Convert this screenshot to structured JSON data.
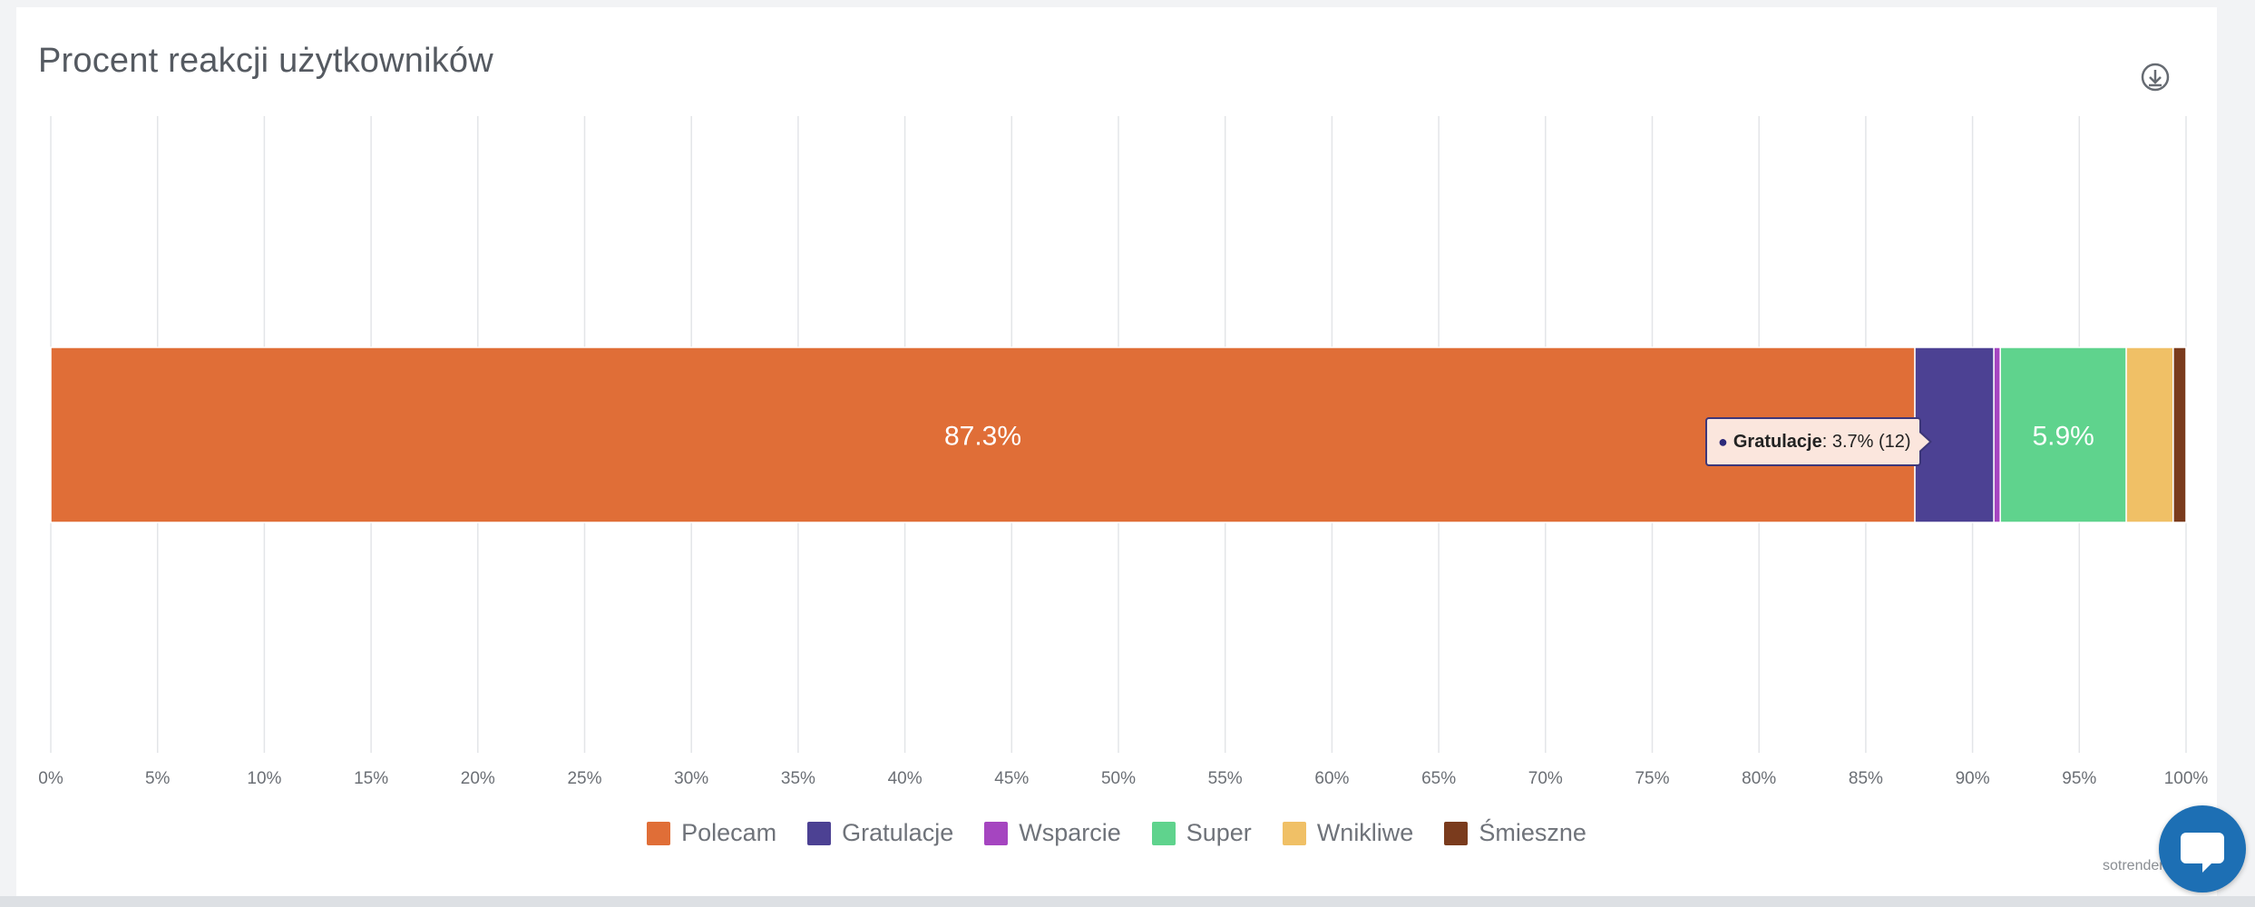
{
  "title": "Procent reakcji użytkowników",
  "credit": "sotrender.",
  "colors": {
    "Polecam": "#e06e37",
    "Gratulacje": "#4c4193",
    "Wsparcie": "#a545c0",
    "Super": "#5fd38d",
    "Wnikliwe": "#f0c066",
    "Śmieszne": "#7a3b1d"
  },
  "icons": {
    "download": "download-icon",
    "chat": "chat-icon"
  },
  "tooltip": {
    "series": "Gratulacje",
    "value_text": ": 3.7% (12)"
  },
  "legend": [
    "Polecam",
    "Gratulacje",
    "Wsparcie",
    "Super",
    "Wnikliwe",
    "Śmieszne"
  ],
  "chart_data": {
    "type": "bar",
    "orientation": "horizontal",
    "stacked": "percent",
    "title": "Procent reakcji użytkowników",
    "xlim": [
      0,
      100
    ],
    "x_ticks": [
      "0%",
      "5%",
      "10%",
      "15%",
      "20%",
      "25%",
      "30%",
      "35%",
      "40%",
      "45%",
      "50%",
      "55%",
      "60%",
      "65%",
      "70%",
      "75%",
      "80%",
      "85%",
      "90%",
      "95%",
      "100%"
    ],
    "grid": true,
    "legend_position": "bottom-center",
    "series": [
      {
        "name": "Polecam",
        "value": 87.3,
        "label": "87.3%"
      },
      {
        "name": "Gratulacje",
        "value": 3.7,
        "count": 12
      },
      {
        "name": "Wsparcie",
        "value": 0.3
      },
      {
        "name": "Super",
        "value": 5.9,
        "label": "5.9%"
      },
      {
        "name": "Wnikliwe",
        "value": 2.2
      },
      {
        "name": "Śmieszne",
        "value": 0.6
      }
    ]
  }
}
